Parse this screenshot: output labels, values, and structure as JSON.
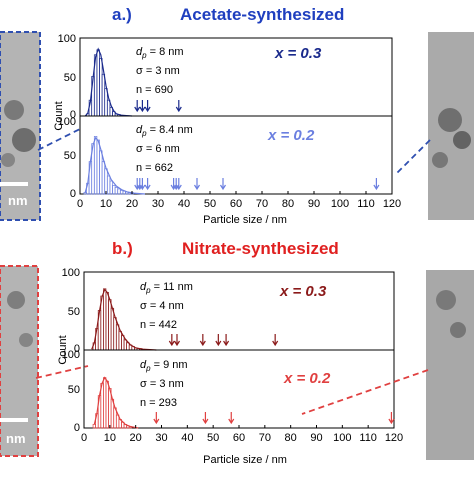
{
  "colors": {
    "acetate_heading": "#1f3fbf",
    "nitrate_heading": "#e02020",
    "acetate_dark": "#1a2a8c",
    "acetate_light": "#6b7fe0",
    "nitrate_dark": "#8b1a1a",
    "nitrate_light": "#e04040",
    "axis": "#000000",
    "tem_bg": "#b4b4b4"
  },
  "panels": [
    {
      "id": "a",
      "title_letter": "a.)",
      "title": "Acetate-synthesized",
      "xlabel": "Particle size / nm",
      "ylabel": "Count",
      "tem_scale_label": "nm",
      "xlim": [
        0,
        120
      ],
      "x_ticks": [
        "0",
        "10",
        "20",
        "30",
        "40",
        "50",
        "60",
        "70",
        "80",
        "90",
        "100",
        "110",
        "120"
      ],
      "subplots": [
        {
          "x_label": "x = 0.3",
          "stats": [
            "d_p = 8 nm",
            "σ = 3 nm",
            "n = 690"
          ],
          "dp_label": "d",
          "dp_sub": "p",
          "dp_value": " = 8 nm",
          "sigma": "σ = 3 nm",
          "n": "n = 690",
          "ylim": [
            0,
            100
          ],
          "y_ticks": [
            "100",
            "50",
            "0"
          ],
          "bins": [
            [
              2,
              0
            ],
            [
              3,
              3
            ],
            [
              4,
              22
            ],
            [
              5,
              55
            ],
            [
              6,
              85
            ],
            [
              7,
              92
            ],
            [
              8,
              80
            ],
            [
              9,
              58
            ],
            [
              10,
              38
            ],
            [
              11,
              22
            ],
            [
              12,
              12
            ],
            [
              13,
              6
            ],
            [
              14,
              3
            ],
            [
              15,
              2
            ]
          ],
          "fit": [
            [
              2,
              0
            ],
            [
              3,
              4
            ],
            [
              4,
              20
            ],
            [
              5,
              52
            ],
            [
              6,
              82
            ],
            [
              7,
              93
            ],
            [
              8,
              85
            ],
            [
              9,
              64
            ],
            [
              10,
              42
            ],
            [
              11,
              25
            ],
            [
              12,
              14
            ],
            [
              13,
              7
            ],
            [
              14,
              3
            ],
            [
              16,
              1
            ],
            [
              20,
              0
            ]
          ],
          "outliers": [
            22,
            24,
            26,
            38
          ]
        },
        {
          "x_label": "x = 0.2",
          "dp_label": "d",
          "dp_sub": "p",
          "dp_value": " = 8.4 nm",
          "sigma": "σ = 6 nm",
          "n": "n = 662",
          "ylim": [
            0,
            100
          ],
          "y_ticks": [
            "100",
            "50",
            "0"
          ],
          "bins": [
            [
              2,
              2
            ],
            [
              3,
              15
            ],
            [
              4,
              45
            ],
            [
              5,
              70
            ],
            [
              6,
              80
            ],
            [
              7,
              75
            ],
            [
              8,
              60
            ],
            [
              9,
              45
            ],
            [
              10,
              35
            ],
            [
              11,
              25
            ],
            [
              12,
              18
            ],
            [
              13,
              12
            ],
            [
              14,
              9
            ],
            [
              15,
              7
            ],
            [
              16,
              5
            ],
            [
              17,
              4
            ],
            [
              18,
              3
            ],
            [
              19,
              2
            ],
            [
              20,
              2
            ]
          ],
          "fit": [
            [
              2,
              2
            ],
            [
              3,
              15
            ],
            [
              4,
              45
            ],
            [
              5,
              68
            ],
            [
              6,
              78
            ],
            [
              7,
              74
            ],
            [
              8,
              62
            ],
            [
              9,
              48
            ],
            [
              10,
              36
            ],
            [
              12,
              20
            ],
            [
              14,
              11
            ],
            [
              16,
              6
            ],
            [
              18,
              3
            ],
            [
              21,
              1
            ],
            [
              25,
              0
            ]
          ],
          "outliers": [
            22,
            23,
            24,
            26,
            36,
            37,
            38,
            45,
            55,
            114
          ]
        }
      ]
    },
    {
      "id": "b",
      "title_letter": "b.)",
      "title": "Nitrate-synthesized",
      "xlabel": "Particle size / nm",
      "ylabel": "Count",
      "tem_scale_label": "nm",
      "xlim": [
        0,
        120
      ],
      "x_ticks": [
        "0",
        "10",
        "20",
        "30",
        "40",
        "50",
        "60",
        "70",
        "80",
        "90",
        "100",
        "110",
        "120"
      ],
      "subplots": [
        {
          "x_label": "x = 0.3",
          "dp_label": "d",
          "dp_sub": "p",
          "dp_value": " = 11 nm",
          "sigma": "σ = 4 nm",
          "n": "n = 442",
          "ylim": [
            0,
            100
          ],
          "y_ticks": [
            "100",
            "50",
            "0"
          ],
          "bins": [
            [
              3,
              0
            ],
            [
              4,
              10
            ],
            [
              5,
              30
            ],
            [
              6,
              55
            ],
            [
              7,
              75
            ],
            [
              8,
              85
            ],
            [
              9,
              80
            ],
            [
              10,
              70
            ],
            [
              11,
              58
            ],
            [
              12,
              45
            ],
            [
              13,
              35
            ],
            [
              14,
              26
            ],
            [
              15,
              20
            ],
            [
              16,
              14
            ],
            [
              17,
              10
            ],
            [
              18,
              7
            ],
            [
              19,
              5
            ],
            [
              20,
              3
            ],
            [
              21,
              2
            ],
            [
              22,
              2
            ]
          ],
          "fit": [
            [
              3,
              1
            ],
            [
              4,
              10
            ],
            [
              5,
              30
            ],
            [
              6,
              54
            ],
            [
              7,
              74
            ],
            [
              8,
              84
            ],
            [
              9,
              80
            ],
            [
              10,
              70
            ],
            [
              12,
              46
            ],
            [
              14,
              27
            ],
            [
              16,
              15
            ],
            [
              18,
              7
            ],
            [
              20,
              3
            ],
            [
              23,
              1
            ],
            [
              28,
              0
            ]
          ],
          "outliers": [
            34,
            36,
            46,
            52,
            55,
            74
          ]
        },
        {
          "x_label": "x = 0.2",
          "dp_label": "d",
          "dp_sub": "p",
          "dp_value": " = 9 nm",
          "sigma": "σ = 3 nm",
          "n": "n = 293",
          "ylim": [
            0,
            100
          ],
          "y_ticks": [
            "100",
            "50",
            "0"
          ],
          "bins": [
            [
              4,
              5
            ],
            [
              5,
              20
            ],
            [
              6,
              45
            ],
            [
              7,
              62
            ],
            [
              8,
              70
            ],
            [
              9,
              65
            ],
            [
              10,
              55
            ],
            [
              11,
              40
            ],
            [
              12,
              28
            ],
            [
              13,
              18
            ],
            [
              14,
              12
            ],
            [
              15,
              8
            ],
            [
              16,
              5
            ],
            [
              17,
              3
            ],
            [
              18,
              2
            ]
          ],
          "fit": [
            [
              4,
              5
            ],
            [
              5,
              20
            ],
            [
              6,
              45
            ],
            [
              7,
              62
            ],
            [
              8,
              70
            ],
            [
              9,
              65
            ],
            [
              10,
              54
            ],
            [
              11,
              40
            ],
            [
              12,
              28
            ],
            [
              14,
              12
            ],
            [
              16,
              5
            ],
            [
              18,
              2
            ],
            [
              21,
              0
            ]
          ],
          "outliers": [
            28,
            47,
            57,
            119
          ]
        }
      ]
    }
  ]
}
